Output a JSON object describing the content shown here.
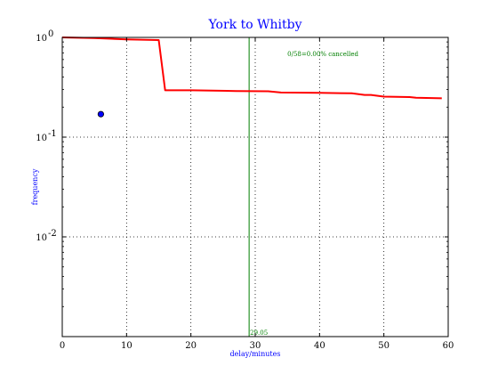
{
  "chart_data": {
    "type": "line",
    "title": "York to Whitby",
    "xlabel": "delay/minutes",
    "ylabel": "frequency",
    "xlim": [
      0,
      60
    ],
    "ylim": [
      0.001,
      1
    ],
    "yscale": "log",
    "grid": true,
    "x_ticks": [
      0,
      10,
      20,
      30,
      40,
      50,
      60
    ],
    "y_ticks": [
      {
        "value": 1,
        "label": "10",
        "exp": "0"
      },
      {
        "value": 0.1,
        "label": "10",
        "exp": "-1"
      },
      {
        "value": 0.01,
        "label": "10",
        "exp": "-2"
      }
    ],
    "series": [
      {
        "color": "#ff0000",
        "points": [
          [
            0,
            1.0
          ],
          [
            5,
            0.985
          ],
          [
            10,
            0.955
          ],
          [
            15,
            0.94
          ],
          [
            16,
            0.295
          ],
          [
            20,
            0.295
          ],
          [
            27,
            0.29
          ],
          [
            32,
            0.288
          ],
          [
            34,
            0.28
          ],
          [
            40,
            0.278
          ],
          [
            45,
            0.275
          ],
          [
            47,
            0.265
          ],
          [
            48,
            0.265
          ],
          [
            50,
            0.255
          ],
          [
            54,
            0.252
          ],
          [
            55,
            0.248
          ],
          [
            59,
            0.245
          ]
        ]
      }
    ],
    "marker": {
      "x": 6,
      "y": 0.17,
      "color": "#0000ff"
    },
    "vline": {
      "x": 29.05,
      "color": "#007f00",
      "label": "29.05"
    },
    "annotation": {
      "text": "0/58=0.00% cancelled",
      "x": 35,
      "y": 0.65
    }
  }
}
